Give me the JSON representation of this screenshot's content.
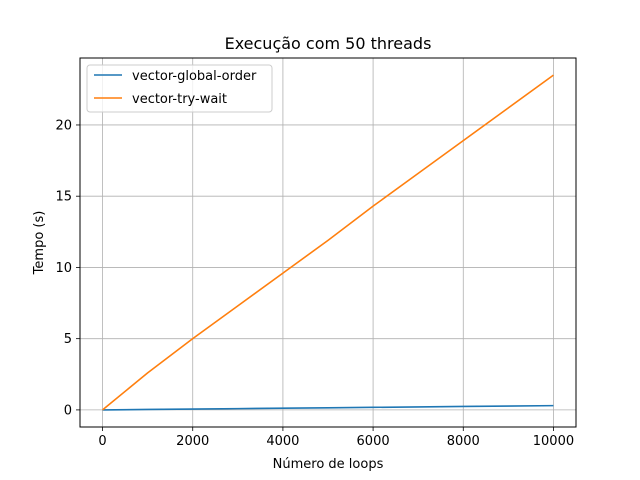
{
  "chart_data": {
    "type": "line",
    "title": "Execução com 50 threads",
    "xlabel": "Número de loops",
    "ylabel": "Tempo (s)",
    "xlim": [
      -500,
      10500
    ],
    "ylim": [
      -1.2,
      24.7
    ],
    "xticks": [
      0,
      2000,
      4000,
      6000,
      8000,
      10000
    ],
    "yticks": [
      0,
      5,
      10,
      15,
      20
    ],
    "grid": true,
    "legend_position": "top-left",
    "series": [
      {
        "name": "vector-global-order",
        "color": "#1f77b4",
        "x": [
          0,
          1000,
          2000,
          3000,
          4000,
          5000,
          6000,
          7000,
          8000,
          9000,
          10000
        ],
        "values": [
          0.0,
          0.03,
          0.06,
          0.09,
          0.12,
          0.15,
          0.18,
          0.21,
          0.24,
          0.27,
          0.3
        ]
      },
      {
        "name": "vector-try-wait",
        "color": "#ff7f0e",
        "x": [
          0,
          1000,
          2000,
          3000,
          4000,
          5000,
          6000,
          7000,
          8000,
          9000,
          10000
        ],
        "values": [
          0.0,
          2.6,
          5.0,
          7.3,
          9.6,
          11.9,
          14.3,
          16.6,
          18.9,
          21.2,
          23.5
        ]
      }
    ]
  }
}
